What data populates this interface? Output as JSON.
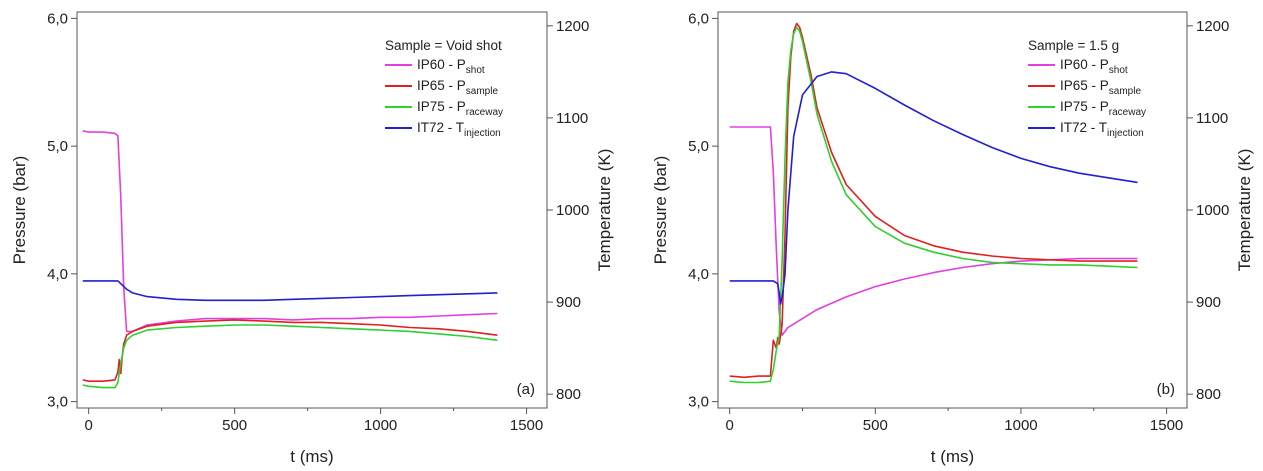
{
  "chart_data": [
    {
      "type": "line",
      "panel_tag": "(a)",
      "legend_title": "Sample = Void shot",
      "xlabel": "t (ms)",
      "ylabel_left": "Pressure (bar)",
      "ylabel_right": "Temperature (K)",
      "xlim": [
        -40,
        1570
      ],
      "ylim_left": [
        2.95,
        6.05
      ],
      "ylim_right": [
        785,
        1215
      ],
      "xticks": [
        0,
        500,
        1000,
        1500
      ],
      "xtick_labels": [
        "0",
        "500",
        "1000",
        "1500"
      ],
      "yticks_left": [
        3.0,
        4.0,
        5.0,
        6.0
      ],
      "ytick_labels_left": [
        "3,0",
        "4,0",
        "5,0",
        "6,0"
      ],
      "yticks_right": [
        800,
        900,
        1000,
        1100,
        1200
      ],
      "ytick_labels_right": [
        "800",
        "900",
        "1000",
        "1100",
        "1200"
      ],
      "grid": false,
      "legend_position": "top-right",
      "series": [
        {
          "name": "IP60 - P",
          "sub": "shot",
          "axis": "left",
          "color": "#e040e0",
          "x": [
            -20,
            0,
            50,
            90,
            100,
            110,
            120,
            130,
            150,
            200,
            300,
            400,
            500,
            600,
            700,
            800,
            900,
            1000,
            1100,
            1200,
            1300,
            1400
          ],
          "y": [
            5.12,
            5.11,
            5.11,
            5.1,
            5.08,
            4.6,
            3.9,
            3.55,
            3.55,
            3.6,
            3.63,
            3.65,
            3.65,
            3.65,
            3.64,
            3.65,
            3.65,
            3.66,
            3.66,
            3.67,
            3.68,
            3.69
          ]
        },
        {
          "name": "IP65 - P",
          "sub": "sample",
          "axis": "left",
          "color": "#e02020",
          "x": [
            -20,
            0,
            50,
            90,
            100,
            105,
            110,
            115,
            120,
            130,
            150,
            200,
            300,
            400,
            500,
            600,
            700,
            800,
            900,
            1000,
            1100,
            1200,
            1300,
            1400
          ],
          "y": [
            3.17,
            3.16,
            3.16,
            3.17,
            3.23,
            3.33,
            3.22,
            3.35,
            3.45,
            3.52,
            3.55,
            3.59,
            3.62,
            3.63,
            3.64,
            3.63,
            3.62,
            3.62,
            3.61,
            3.6,
            3.58,
            3.57,
            3.55,
            3.52
          ]
        },
        {
          "name": "IP75 - P",
          "sub": "raceway",
          "axis": "left",
          "color": "#30d030",
          "x": [
            -20,
            0,
            50,
            90,
            100,
            110,
            120,
            130,
            150,
            200,
            300,
            400,
            500,
            600,
            700,
            800,
            900,
            1000,
            1100,
            1200,
            1300,
            1400
          ],
          "y": [
            3.13,
            3.12,
            3.11,
            3.11,
            3.15,
            3.3,
            3.42,
            3.48,
            3.52,
            3.56,
            3.58,
            3.59,
            3.6,
            3.6,
            3.59,
            3.58,
            3.57,
            3.56,
            3.55,
            3.53,
            3.51,
            3.48
          ]
        },
        {
          "name": "IT72 - T",
          "sub": "injection",
          "axis": "right",
          "color": "#2020d0",
          "x": [
            -20,
            0,
            50,
            100,
            110,
            130,
            150,
            200,
            300,
            400,
            500,
            600,
            700,
            800,
            900,
            1000,
            1100,
            1200,
            1300,
            1400
          ],
          "y": [
            923,
            923,
            923,
            923,
            920,
            914,
            910,
            906,
            903,
            902,
            902,
            902,
            903,
            904,
            905,
            906,
            907,
            908,
            909,
            910
          ]
        }
      ]
    },
    {
      "type": "line",
      "panel_tag": "(b)",
      "legend_title": "Sample = 1.5 g",
      "xlabel": "t (ms)",
      "ylabel_left": "Pressure (bar)",
      "ylabel_right": "Temperature (K)",
      "xlim": [
        -40,
        1570
      ],
      "ylim_left": [
        2.95,
        6.05
      ],
      "ylim_right": [
        785,
        1215
      ],
      "xticks": [
        0,
        500,
        1000,
        1500
      ],
      "xtick_labels": [
        "0",
        "500",
        "1000",
        "1500"
      ],
      "yticks_left": [
        3.0,
        4.0,
        5.0,
        6.0
      ],
      "ytick_labels_left": [
        "3,0",
        "4,0",
        "5,0",
        "6,0"
      ],
      "yticks_right": [
        800,
        900,
        1000,
        1100,
        1200
      ],
      "ytick_labels_right": [
        "800",
        "900",
        "1000",
        "1100",
        "1200"
      ],
      "grid": false,
      "legend_position": "top-right",
      "series": [
        {
          "name": "IP60 - P",
          "sub": "shot",
          "axis": "left",
          "color": "#e040e0",
          "x": [
            0,
            50,
            100,
            140,
            150,
            160,
            170,
            180,
            190,
            200,
            250,
            300,
            400,
            500,
            600,
            700,
            800,
            900,
            1000,
            1100,
            1200,
            1300,
            1400
          ],
          "y": [
            5.15,
            5.15,
            5.15,
            5.15,
            4.8,
            4.2,
            3.7,
            3.52,
            3.55,
            3.58,
            3.65,
            3.72,
            3.82,
            3.9,
            3.96,
            4.01,
            4.05,
            4.08,
            4.1,
            4.11,
            4.12,
            4.12,
            4.12
          ]
        },
        {
          "name": "IP65 - P",
          "sub": "sample",
          "axis": "left",
          "color": "#e02020",
          "x": [
            0,
            50,
            100,
            140,
            150,
            160,
            165,
            170,
            180,
            190,
            200,
            210,
            220,
            230,
            240,
            250,
            280,
            300,
            350,
            400,
            500,
            600,
            700,
            800,
            900,
            1000,
            1100,
            1200,
            1300,
            1400
          ],
          "y": [
            3.2,
            3.19,
            3.2,
            3.2,
            3.48,
            3.42,
            3.5,
            3.45,
            3.6,
            4.3,
            5.3,
            5.7,
            5.9,
            5.96,
            5.93,
            5.85,
            5.55,
            5.3,
            4.95,
            4.7,
            4.45,
            4.3,
            4.22,
            4.17,
            4.14,
            4.12,
            4.11,
            4.1,
            4.1,
            4.1
          ]
        },
        {
          "name": "IP75 - P",
          "sub": "raceway",
          "axis": "left",
          "color": "#30d030",
          "x": [
            0,
            50,
            100,
            140,
            150,
            160,
            170,
            180,
            190,
            200,
            210,
            220,
            230,
            240,
            250,
            280,
            300,
            350,
            400,
            500,
            600,
            700,
            800,
            900,
            1000,
            1100,
            1200,
            1300,
            1400
          ],
          "y": [
            3.16,
            3.15,
            3.15,
            3.16,
            3.25,
            3.4,
            3.52,
            4.1,
            4.9,
            5.5,
            5.75,
            5.88,
            5.93,
            5.9,
            5.82,
            5.5,
            5.25,
            4.88,
            4.62,
            4.37,
            4.24,
            4.17,
            4.12,
            4.09,
            4.08,
            4.07,
            4.07,
            4.06,
            4.05
          ]
        },
        {
          "name": "IT72 - T",
          "sub": "injection",
          "axis": "right",
          "color": "#2020d0",
          "x": [
            0,
            50,
            100,
            150,
            165,
            170,
            175,
            180,
            190,
            200,
            220,
            250,
            300,
            350,
            400,
            500,
            600,
            700,
            800,
            900,
            1000,
            1100,
            1200,
            1300,
            1400
          ],
          "y": [
            923,
            923,
            923,
            923,
            920,
            910,
            898,
            905,
            930,
            1000,
            1080,
            1125,
            1145,
            1150,
            1148,
            1132,
            1114,
            1097,
            1082,
            1068,
            1056,
            1047,
            1040,
            1035,
            1030
          ]
        }
      ]
    }
  ]
}
